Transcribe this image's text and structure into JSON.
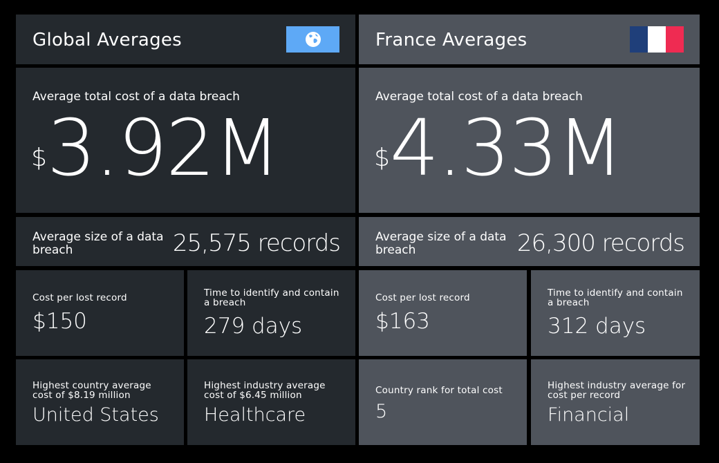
{
  "global": {
    "title": "Global Averages",
    "icon": "globe-icon",
    "icon_bg": "#5ea9f6",
    "cost_label": "Average total cost of a data breach",
    "cost_currency": "$",
    "cost_value": "3.92M",
    "size_label": "Average size of a data breach",
    "size_value": "25,575 records",
    "per_record_label": "Cost per lost record",
    "per_record_value": "$150",
    "time_label": "Time to identify and contain a breach",
    "time_value": "279 days",
    "country_label": "Highest country average cost of $8.19 million",
    "country_value": "United States",
    "industry_label": "Highest industry average cost of $6.45 million",
    "industry_value": "Healthcare"
  },
  "france": {
    "title": "France Averages",
    "icon": "france-flag-icon",
    "flag_colors": [
      "#1f3f7a",
      "#ffffff",
      "#ef2b52"
    ],
    "cost_label": "Average total cost of a data breach",
    "cost_currency": "$",
    "cost_value": "4.33M",
    "size_label": "Average size of a data breach",
    "size_value": "26,300 records",
    "per_record_label": "Cost per lost record",
    "per_record_value": "$163",
    "time_label": "Time to identify and contain a breach",
    "time_value": "312 days",
    "rank_label": "Country rank for total cost",
    "rank_value": "5",
    "industry_label": "Highest industry average for cost per record",
    "industry_value": "Financial"
  },
  "colors": {
    "global_panel": "#24292e",
    "france_panel": "#4f545c",
    "background": "#000000"
  }
}
